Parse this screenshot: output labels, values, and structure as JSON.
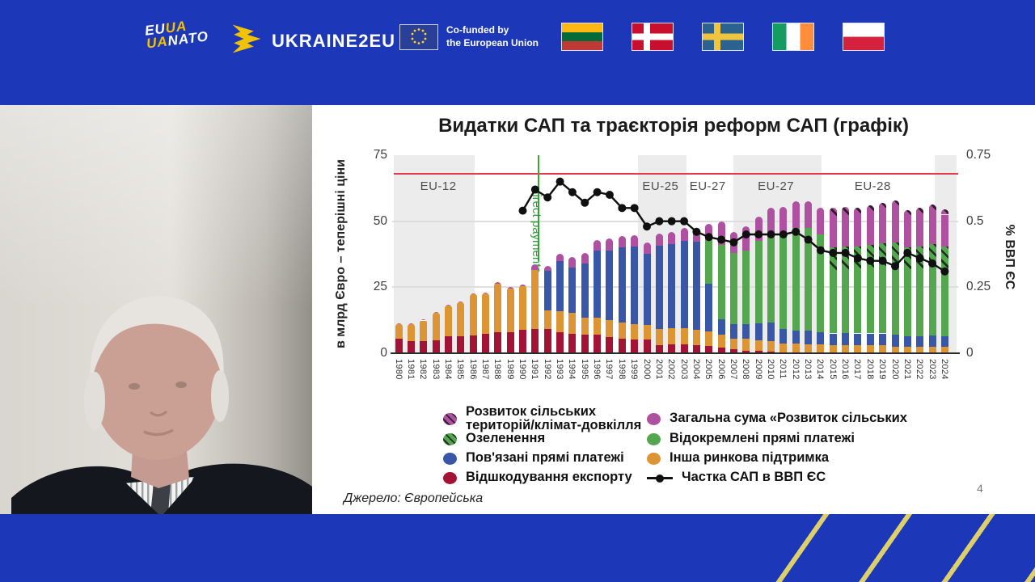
{
  "header": {
    "euuanato": {
      "line1_a": "EU",
      "line1_b": "UA",
      "line2_a": "UA",
      "line2_b": "NATO"
    },
    "ukraine2eu_label": "UKRAINE2EU",
    "cofunded_line1": "Co-funded by",
    "cofunded_line2": "the European Union",
    "flags": [
      {
        "id": "lithuania"
      },
      {
        "id": "denmark"
      },
      {
        "id": "sweden"
      },
      {
        "id": "ireland"
      },
      {
        "id": "poland"
      }
    ]
  },
  "slide": {
    "title": "Видатки САП та траєкторія реформ САП (графік)",
    "source": "Джерело: Європейська",
    "page_number": "4"
  },
  "chart_data": {
    "type": "stacked-bar+line",
    "title": "Видатки САП та траєкторія реформ САП (графік)",
    "ylabel_left": "в млрд Євро – теперішні ціни",
    "ylabel_right": "% ВВП ЄС",
    "ylim_left": [
      0,
      75
    ],
    "ylim_right": [
      0,
      0.75
    ],
    "yticks_left": [
      0,
      25,
      50,
      75
    ],
    "yticks_right": [
      "0",
      "0.25",
      "0.5",
      "0.75"
    ],
    "grid_y": [
      25,
      50
    ],
    "years": [
      1980,
      1981,
      1982,
      1983,
      1984,
      1985,
      1986,
      1987,
      1988,
      1989,
      1990,
      1991,
      1992,
      1993,
      1994,
      1995,
      1996,
      1997,
      1998,
      1999,
      2000,
      2001,
      2002,
      2003,
      2004,
      2005,
      2006,
      2007,
      2008,
      2009,
      2010,
      2011,
      2012,
      2013,
      2014,
      2015,
      2016,
      2017,
      2018,
      2019,
      2020,
      2021,
      2022,
      2023,
      2024
    ],
    "series_order": [
      "export_refunds",
      "other_market_support",
      "coupled_direct_payments",
      "decoupled_direct_payments",
      "greening",
      "rural_development_total",
      "rural_dev_climate"
    ],
    "series_style": [
      {
        "key": "export_refunds",
        "color": "#a31335",
        "hatch": false
      },
      {
        "key": "other_market_support",
        "color": "#dd9434",
        "hatch": false
      },
      {
        "key": "coupled_direct_payments",
        "color": "#3a57a7",
        "hatch": false
      },
      {
        "key": "decoupled_direct_payments",
        "color": "#54a74f",
        "hatch": false
      },
      {
        "key": "greening",
        "color": "#54a74f",
        "hatch": true
      },
      {
        "key": "rural_development_total",
        "color": "#b050a0",
        "hatch": false
      },
      {
        "key": "rural_dev_climate",
        "color": "#b050a0",
        "hatch": true
      }
    ],
    "bars": [
      [
        5.4,
        5.5,
        0,
        0,
        0,
        0.3,
        0
      ],
      [
        4.5,
        6.5,
        0,
        0,
        0,
        0.3,
        0
      ],
      [
        4.7,
        7.7,
        0,
        0,
        0,
        0.4,
        0
      ],
      [
        4.8,
        10.5,
        0,
        0,
        0,
        0.4,
        0
      ],
      [
        6.3,
        11.8,
        0,
        0,
        0,
        0.4,
        0
      ],
      [
        6.5,
        12.7,
        0,
        0,
        0,
        0.4,
        0
      ],
      [
        6.8,
        15.4,
        0,
        0,
        0,
        0.5,
        0
      ],
      [
        7.3,
        15.3,
        0,
        0,
        0,
        0.5,
        0
      ],
      [
        8.0,
        18.3,
        0,
        0,
        0,
        0.5,
        0
      ],
      [
        8.0,
        16.5,
        0,
        0,
        0,
        0.5,
        0
      ],
      [
        9.0,
        16.5,
        0,
        0,
        0,
        0.5,
        0
      ],
      [
        9.3,
        22.1,
        0,
        0,
        0,
        2.3,
        0
      ],
      [
        9.3,
        7.0,
        15.0,
        0,
        0,
        1.9,
        0
      ],
      [
        8.0,
        8.0,
        19.0,
        0,
        0,
        2.7,
        0
      ],
      [
        7.4,
        8.0,
        17.0,
        0,
        0,
        3.9,
        0
      ],
      [
        7.0,
        6.5,
        20.5,
        0,
        0,
        4.0,
        0
      ],
      [
        7.0,
        6.5,
        25.5,
        0,
        0,
        4.0,
        0
      ],
      [
        6.0,
        6.5,
        26.5,
        0,
        0,
        4.5,
        0
      ],
      [
        5.5,
        6.0,
        28.5,
        0,
        0,
        4.3,
        0
      ],
      [
        5.2,
        5.7,
        29.6,
        0,
        0,
        4.2,
        0
      ],
      [
        5.2,
        5.6,
        27.0,
        0,
        0,
        4.0,
        0
      ],
      [
        3.2,
        6.1,
        31.5,
        0,
        0,
        4.4,
        0
      ],
      [
        3.4,
        6.0,
        32.0,
        0,
        0,
        4.4,
        0
      ],
      [
        3.4,
        6.0,
        33.0,
        0,
        0,
        5.0,
        0
      ],
      [
        3.2,
        5.6,
        33.5,
        0,
        0,
        5.2,
        0
      ],
      [
        2.7,
        5.6,
        18.0,
        16.7,
        0,
        6.0,
        0
      ],
      [
        2.0,
        5.0,
        6.0,
        28.0,
        0,
        9.0,
        0
      ],
      [
        1.5,
        4.0,
        5.5,
        27.0,
        0,
        8.0,
        0
      ],
      [
        1.0,
        4.5,
        5.5,
        28.0,
        0,
        9.0,
        0
      ],
      [
        0.8,
        4.0,
        6.5,
        31.3,
        0,
        9.0,
        0
      ],
      [
        0.5,
        4.0,
        7.0,
        34.0,
        0,
        9.5,
        0
      ],
      [
        0.2,
        3.5,
        5.5,
        36.3,
        0,
        10.0,
        0
      ],
      [
        0.2,
        3.5,
        5.0,
        38.8,
        0,
        10.0,
        0
      ],
      [
        0,
        3.5,
        5.0,
        39.0,
        0,
        10.2,
        0
      ],
      [
        0,
        3.5,
        4.5,
        37.0,
        0,
        10.0,
        0
      ],
      [
        0,
        3.0,
        4.5,
        24.0,
        8.5,
        12.0,
        3.0
      ],
      [
        0,
        3.2,
        4.5,
        24.0,
        8.6,
        12.0,
        3.0
      ],
      [
        0,
        3.0,
        4.5,
        24.5,
        8.5,
        12.5,
        2.0
      ],
      [
        0,
        3.0,
        4.5,
        25.0,
        8.5,
        13.0,
        2.0
      ],
      [
        0,
        3.0,
        4.5,
        25.5,
        8.7,
        13.3,
        2.0
      ],
      [
        0,
        2.5,
        4.5,
        26.5,
        8.5,
        14.0,
        2.0
      ],
      [
        0,
        2.5,
        4.0,
        25.2,
        8.5,
        12.0,
        2.0
      ],
      [
        0,
        2.5,
        4.0,
        25.5,
        8.5,
        12.5,
        2.0
      ],
      [
        0,
        2.5,
        4.3,
        26.0,
        8.5,
        13.0,
        2.0
      ],
      [
        0,
        2.5,
        4.0,
        25.5,
        8.5,
        12.0,
        2.0
      ]
    ],
    "line": {
      "name": "Частка САП в ВВП ЄС",
      "color": "#101010",
      "values": [
        null,
        null,
        null,
        null,
        null,
        null,
        null,
        null,
        null,
        null,
        0.54,
        0.62,
        0.59,
        0.65,
        0.61,
        0.57,
        0.61,
        0.6,
        0.55,
        0.55,
        0.48,
        0.5,
        0.5,
        0.5,
        0.46,
        0.44,
        0.43,
        0.42,
        0.45,
        0.45,
        0.45,
        0.45,
        0.46,
        0.43,
        0.39,
        0.38,
        0.38,
        0.36,
        0.35,
        0.35,
        0.33,
        0.38,
        0.36,
        0.34,
        0.31
      ]
    },
    "reference_line": {
      "value_right_axis": 0.68,
      "color": "#e23b4e"
    },
    "event_line": {
      "year": 1991.3,
      "label": "direct payments",
      "color": "#3aa63a"
    },
    "era_bands_years": [
      [
        1979.5,
        1986.1
      ],
      [
        1999.3,
        2003.2
      ],
      [
        2007.0,
        2014.1
      ],
      [
        2023.2,
        2025.0
      ]
    ],
    "era_labels": [
      {
        "text": "EU-12",
        "year": 1983.2
      },
      {
        "text": "EU-25",
        "year": 2001.1
      },
      {
        "text": "EU-27",
        "year": 2004.9
      },
      {
        "text": "EU-27",
        "year": 2010.4
      },
      {
        "text": "EU-28",
        "year": 2018.2
      }
    ],
    "legend_left": [
      {
        "lines": [
          "Розвиток сільських",
          "територій/клімат-довкілля"
        ],
        "marker": "hatch",
        "color": "#b050a0"
      },
      {
        "lines": [
          "Озеленення"
        ],
        "marker": "hatch",
        "color": "#54a74f"
      },
      {
        "lines": [
          "Пов'язані прямі платежі"
        ],
        "marker": "solid",
        "color": "#3a57a7"
      },
      {
        "lines": [
          "Відшкодування експорту"
        ],
        "marker": "solid",
        "color": "#a31335"
      }
    ],
    "legend_right": [
      {
        "lines": [
          "Загальна сума «Розвиток сільських"
        ],
        "marker": "solid",
        "color": "#b050a0"
      },
      {
        "lines": [
          "Відокремлені прямі платежі"
        ],
        "marker": "solid",
        "color": "#54a74f"
      },
      {
        "lines": [
          "Інша ринкова підтримка"
        ],
        "marker": "solid",
        "color": "#dd9434"
      },
      {
        "lines": [
          "Частка САП в ВВП ЄС"
        ],
        "marker": "linedot",
        "color": "#101010"
      }
    ]
  }
}
